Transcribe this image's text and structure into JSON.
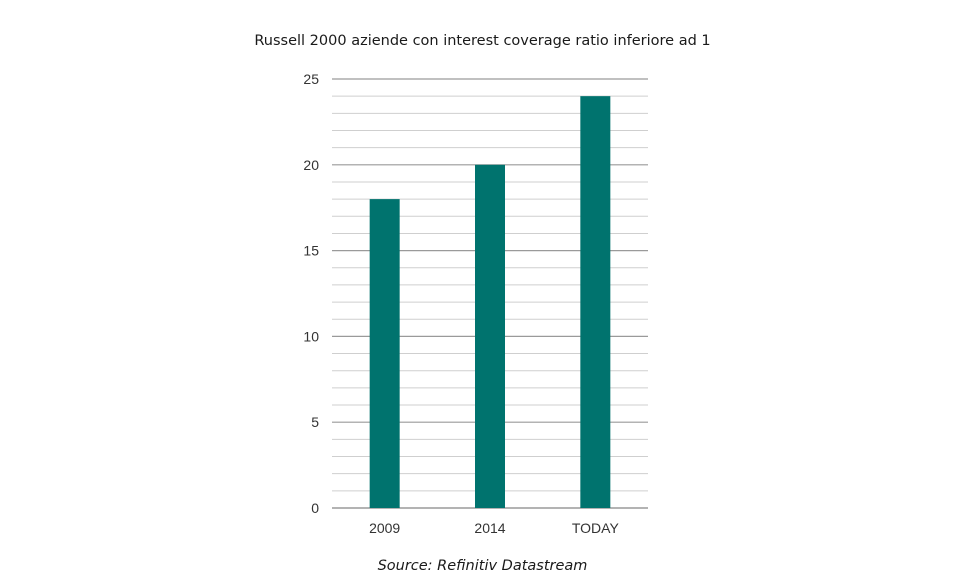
{
  "chart_data": {
    "type": "bar",
    "title": "Russell 2000 aziende con interest coverage ratio  inferiore ad 1",
    "source": "Source: Refinitiv Datastream",
    "categories": [
      "2009",
      "2014",
      "TODAY"
    ],
    "values": [
      18,
      20,
      24
    ],
    "ylim": [
      0,
      25
    ],
    "yticks": [
      0,
      5,
      10,
      15,
      20,
      25
    ],
    "minor_step": 1,
    "grid": true,
    "bar_color": "#00736e",
    "major_grid_color": "#9a9a9a",
    "minor_grid_color": "#cfcfcf",
    "xlabel": "",
    "ylabel": ""
  }
}
